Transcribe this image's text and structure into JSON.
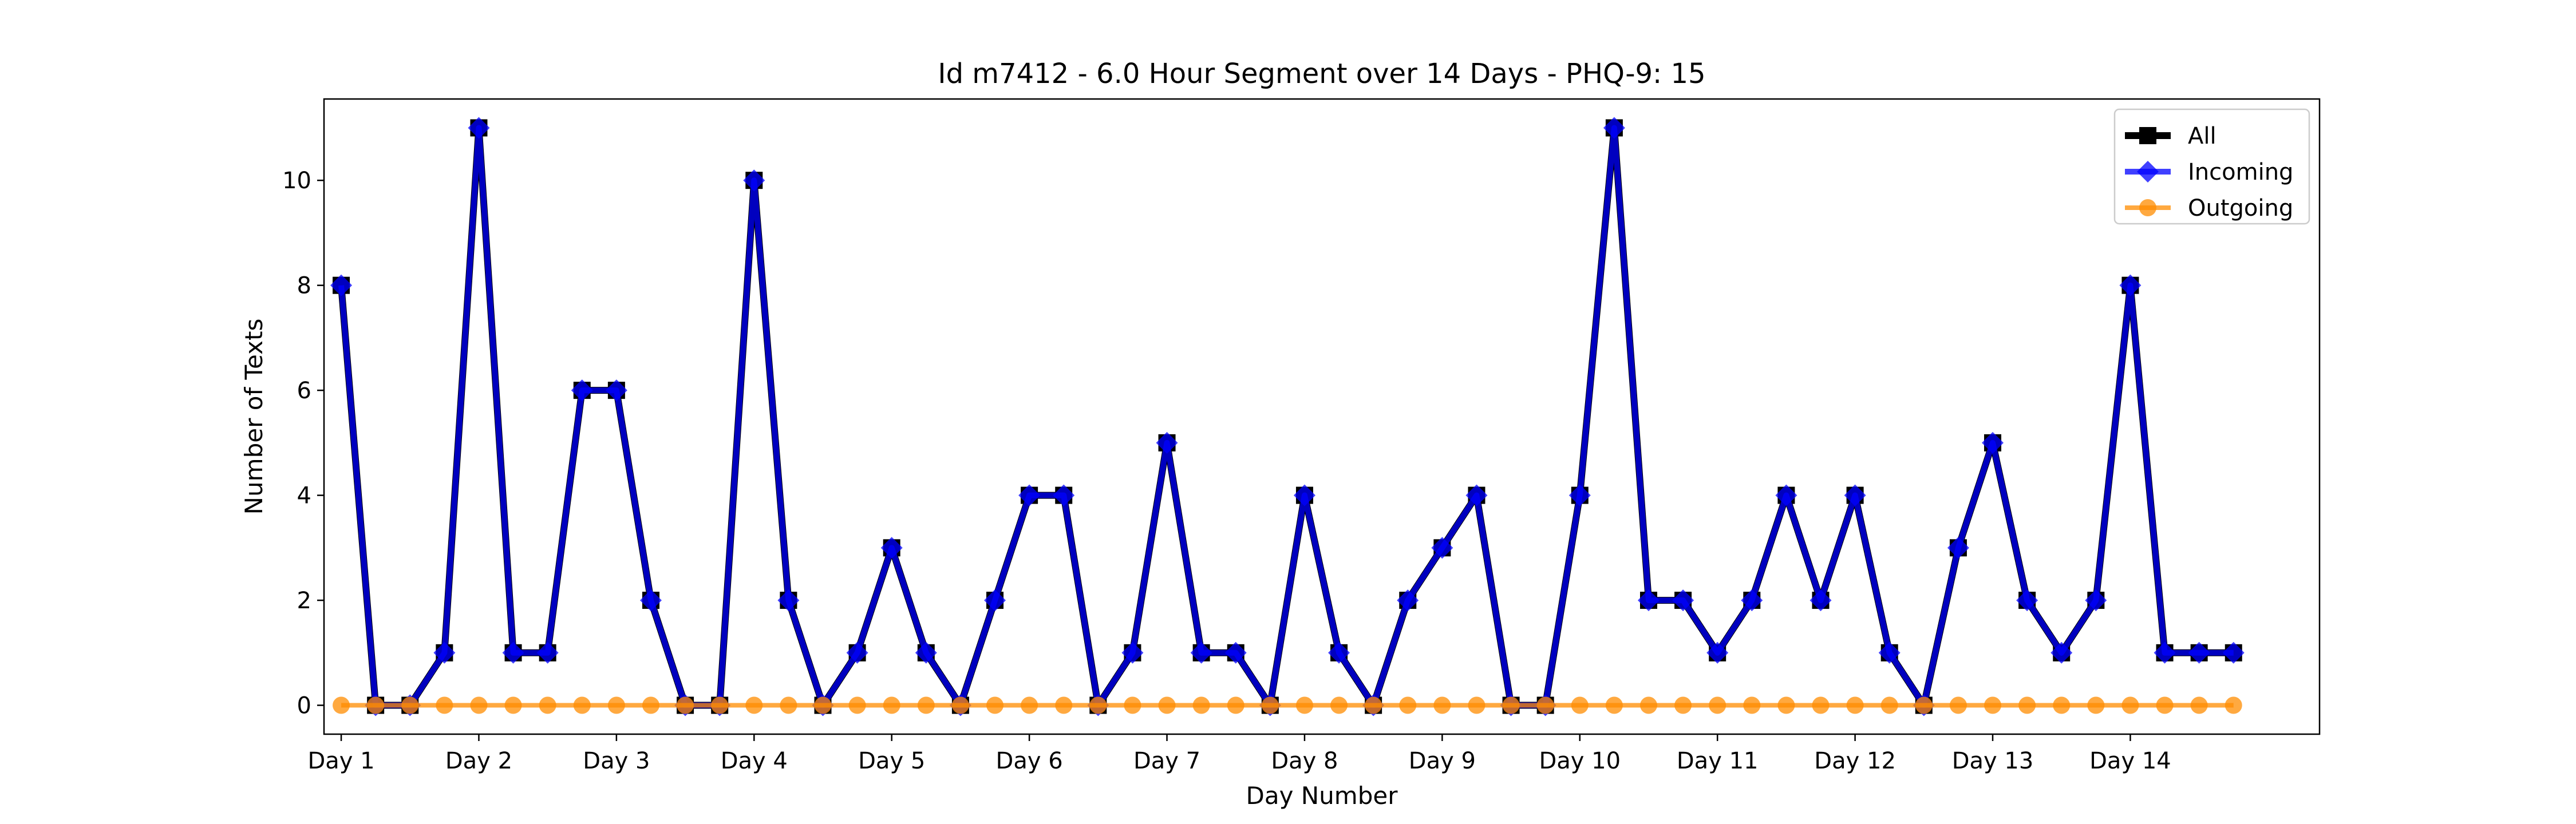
{
  "chart_data": {
    "type": "line",
    "title": "Id m7412 - 6.0 Hour Segment over 14 Days - PHQ-9: 15",
    "xlabel": "Day Number",
    "ylabel": "Number of Texts",
    "x_tick_labels": [
      "Day 1",
      "Day 2",
      "Day 3",
      "Day 4",
      "Day 5",
      "Day 6",
      "Day 7",
      "Day 8",
      "Day 9",
      "Day 10",
      "Day 11",
      "Day 12",
      "Day 13",
      "Day 14"
    ],
    "y_ticks": [
      0,
      2,
      4,
      6,
      8,
      10
    ],
    "ylim": [
      -0.55,
      11.55
    ],
    "xlim": [
      -0.5,
      57.5
    ],
    "x": [
      0,
      1,
      2,
      3,
      4,
      5,
      6,
      7,
      8,
      9,
      10,
      11,
      12,
      13,
      14,
      15,
      16,
      17,
      18,
      19,
      20,
      21,
      22,
      23,
      24,
      25,
      26,
      27,
      28,
      29,
      30,
      31,
      32,
      33,
      34,
      35,
      36,
      37,
      38,
      39,
      40,
      41,
      42,
      43,
      44,
      45,
      46,
      47,
      48,
      49,
      50,
      51,
      52,
      53,
      54,
      55
    ],
    "grid": false,
    "legend_position": "top-right",
    "series": [
      {
        "name": "All",
        "color": "#000000",
        "marker": "square",
        "values": [
          8,
          0,
          0,
          1,
          11,
          1,
          1,
          6,
          6,
          2,
          0,
          0,
          10,
          2,
          0,
          1,
          3,
          1,
          0,
          2,
          4,
          4,
          0,
          1,
          5,
          1,
          1,
          0,
          4,
          1,
          0,
          2,
          3,
          4,
          0,
          0,
          4,
          11,
          2,
          2,
          1,
          2,
          4,
          2,
          4,
          1,
          0,
          3,
          5,
          2,
          1,
          2,
          8,
          1,
          1,
          1
        ]
      },
      {
        "name": "Incoming",
        "color": "#0000ff",
        "marker": "diamond",
        "values": [
          8,
          0,
          0,
          1,
          11,
          1,
          1,
          6,
          6,
          2,
          0,
          0,
          10,
          2,
          0,
          1,
          3,
          1,
          0,
          2,
          4,
          4,
          0,
          1,
          5,
          1,
          1,
          0,
          4,
          1,
          0,
          2,
          3,
          4,
          0,
          0,
          4,
          11,
          2,
          2,
          1,
          2,
          4,
          2,
          4,
          1,
          0,
          3,
          5,
          2,
          1,
          2,
          8,
          1,
          1,
          1
        ]
      },
      {
        "name": "Outgoing",
        "color": "#ff8c00",
        "marker": "circle",
        "values": [
          0,
          0,
          0,
          0,
          0,
          0,
          0,
          0,
          0,
          0,
          0,
          0,
          0,
          0,
          0,
          0,
          0,
          0,
          0,
          0,
          0,
          0,
          0,
          0,
          0,
          0,
          0,
          0,
          0,
          0,
          0,
          0,
          0,
          0,
          0,
          0,
          0,
          0,
          0,
          0,
          0,
          0,
          0,
          0,
          0,
          0,
          0,
          0,
          0,
          0,
          0,
          0,
          0,
          0,
          0,
          0
        ]
      }
    ]
  }
}
